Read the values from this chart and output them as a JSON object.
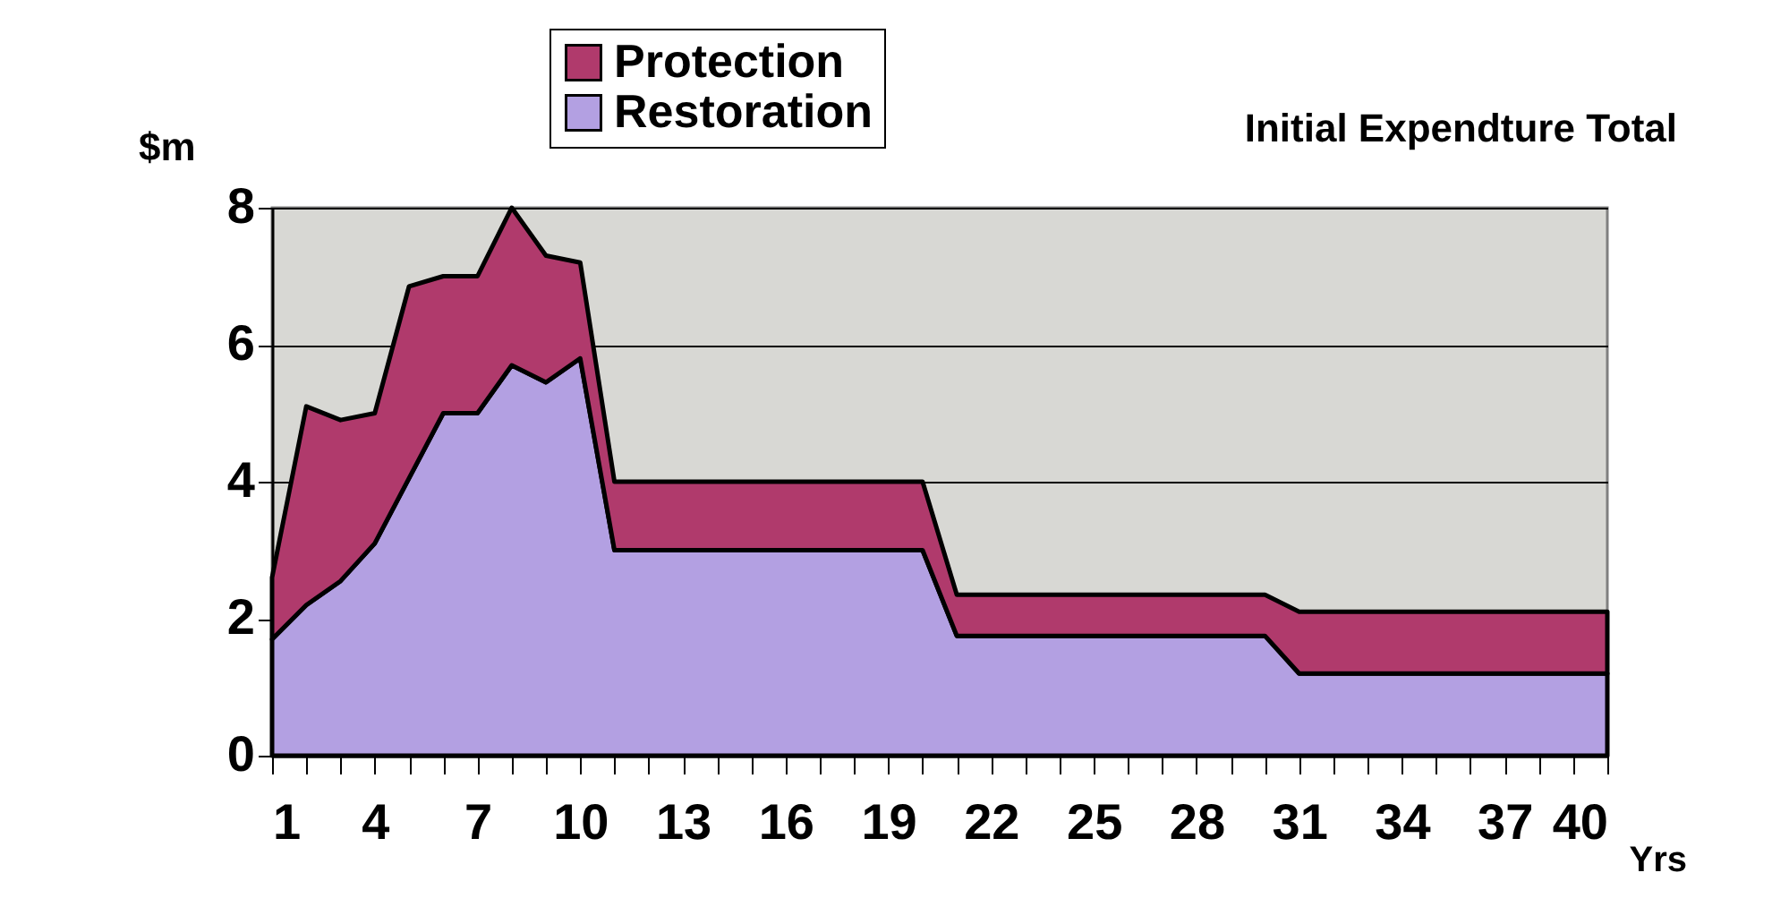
{
  "chart_data": {
    "type": "area",
    "stacked": true,
    "title": "Initial Expendture Total",
    "ylabel": "$m",
    "xlabel": "Yrs",
    "categories": [
      "1",
      null,
      null,
      "4",
      null,
      null,
      "7",
      null,
      null,
      "10",
      null,
      null,
      "13",
      null,
      null,
      "16",
      null,
      null,
      "19",
      null,
      null,
      "22",
      null,
      null,
      "25",
      null,
      null,
      "28",
      null,
      null,
      "31",
      null,
      null,
      "34",
      null,
      null,
      "37",
      null,
      null,
      "40"
    ],
    "series": [
      {
        "name": "Restoration",
        "color": "#b3a0e2",
        "values": [
          1.7,
          2.2,
          2.55,
          3.1,
          4.05,
          5.0,
          5.0,
          5.7,
          5.45,
          5.8,
          3.0,
          3.0,
          3.0,
          3.0,
          3.0,
          3.0,
          3.0,
          3.0,
          3.0,
          3.0,
          1.75,
          1.75,
          1.75,
          1.75,
          1.75,
          1.75,
          1.75,
          1.75,
          1.75,
          1.75,
          1.2,
          1.2,
          1.2,
          1.2,
          1.2,
          1.2,
          1.2,
          1.2,
          1.2,
          1.2
        ]
      },
      {
        "name": "Protection",
        "color": "#b03a6c",
        "values": [
          0.9,
          2.9,
          2.35,
          1.9,
          2.8,
          2.0,
          2.0,
          2.3,
          1.85,
          1.4,
          1.0,
          1.0,
          1.0,
          1.0,
          1.0,
          1.0,
          1.0,
          1.0,
          1.0,
          1.0,
          0.6,
          0.6,
          0.6,
          0.6,
          0.6,
          0.6,
          0.6,
          0.6,
          0.6,
          0.6,
          0.9,
          0.9,
          0.9,
          0.9,
          0.9,
          0.9,
          0.9,
          0.9,
          0.9,
          0.9
        ]
      }
    ],
    "ylim": [
      0,
      8
    ],
    "yticks": [
      0,
      2,
      4,
      6,
      8
    ],
    "grid": "y",
    "legend": "top"
  }
}
